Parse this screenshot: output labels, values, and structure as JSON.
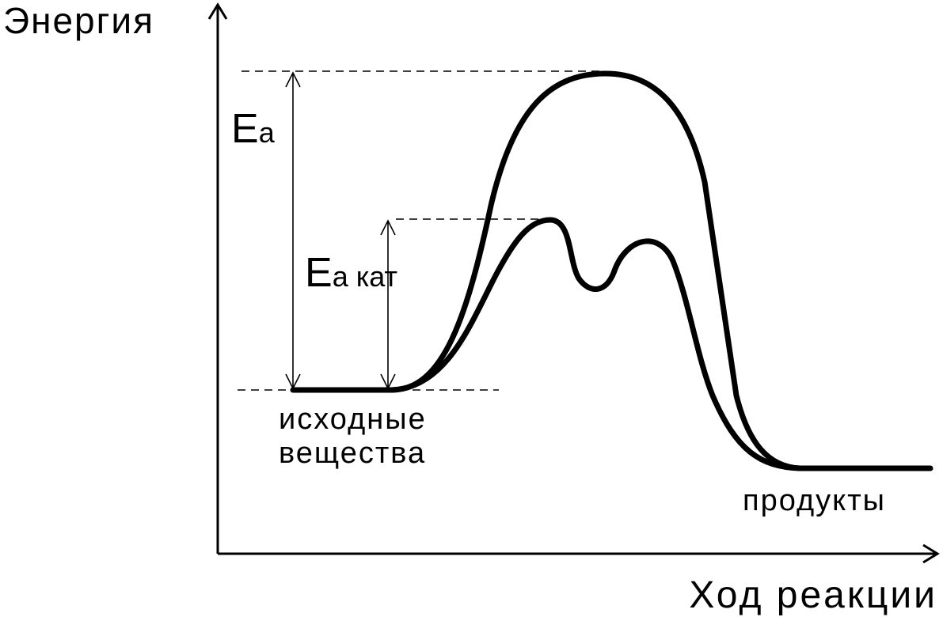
{
  "axes": {
    "y_label": "Энергия",
    "x_label": "Ход реакции"
  },
  "labels": {
    "activation_energy": {
      "main": "E",
      "sub": "а"
    },
    "catalyzed_activation_energy": {
      "main": "E",
      "sub": "а кат"
    },
    "reactants": [
      "исходные",
      "вещества"
    ],
    "products": "продукты"
  }
}
